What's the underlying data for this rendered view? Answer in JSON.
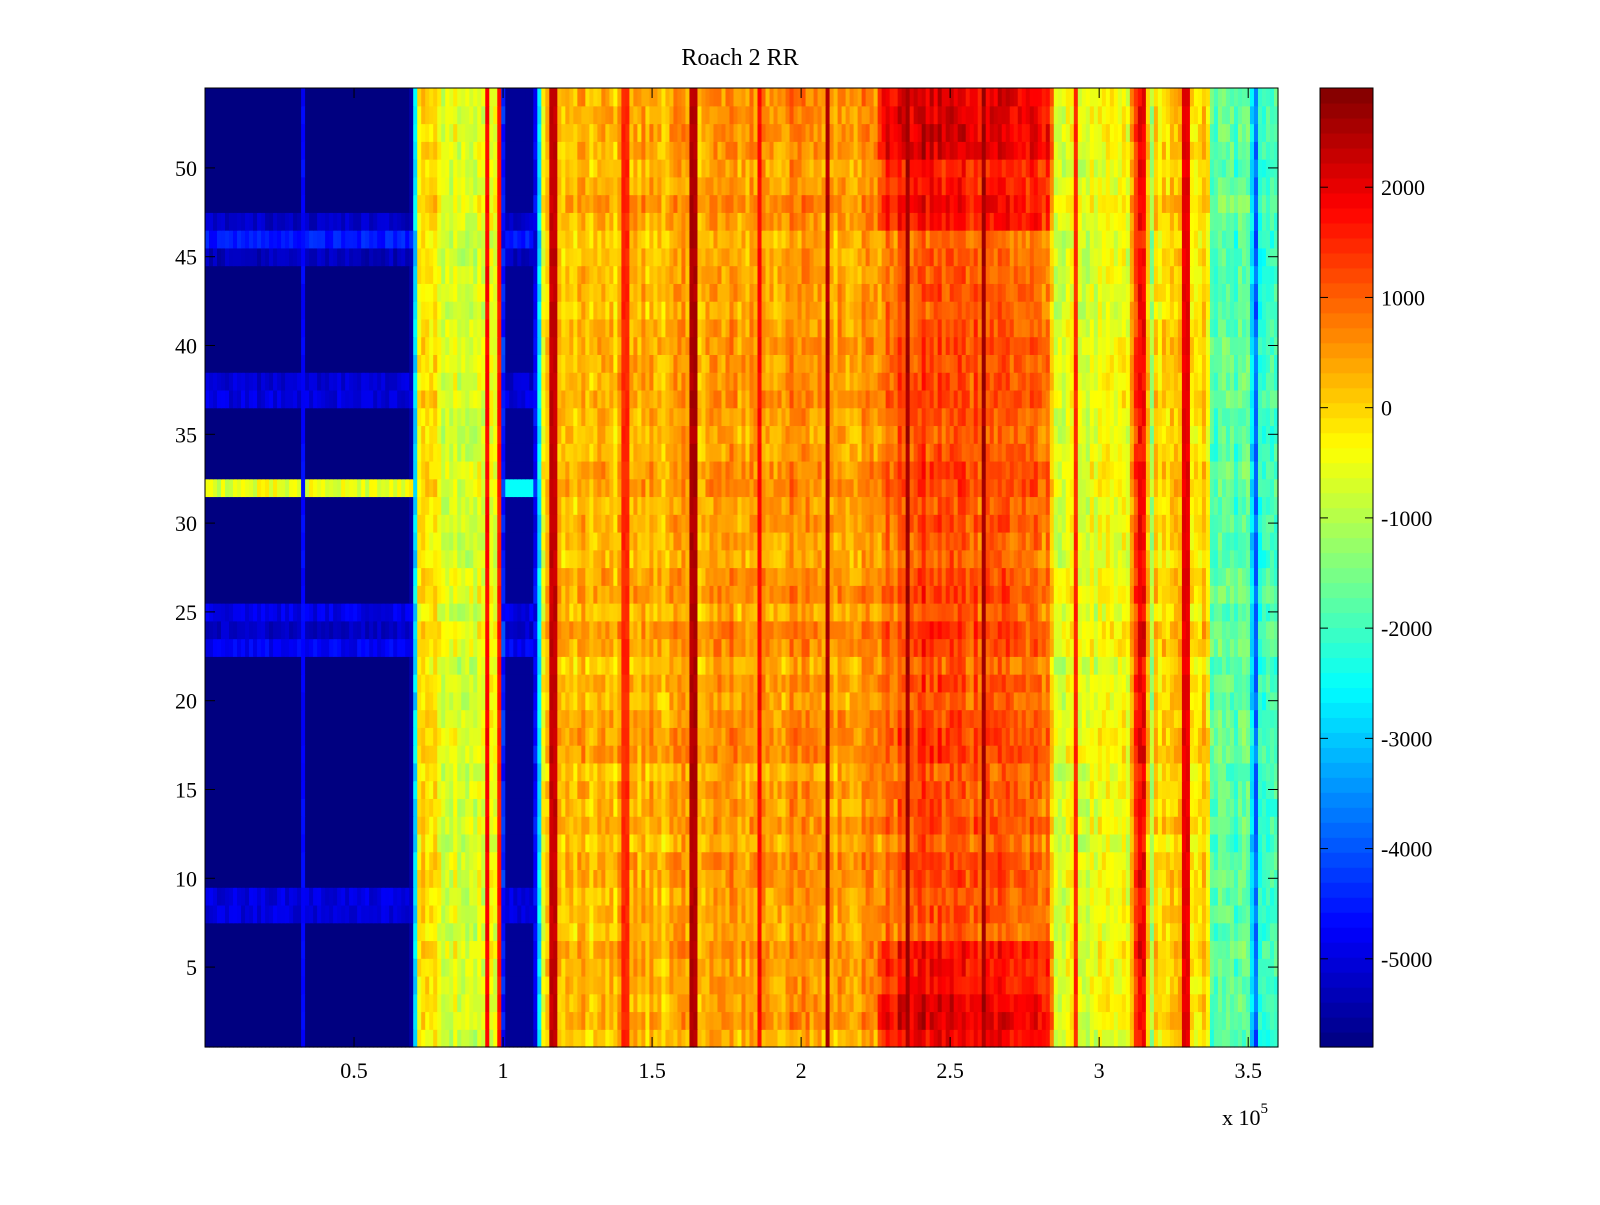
{
  "chart_data": {
    "type": "heatmap",
    "title": "Roach 2 RR",
    "xlabel": "",
    "ylabel": "",
    "x_multiplier_label": "x 10",
    "x_multiplier_exponent": "5",
    "xlim": [
      0,
      360000
    ],
    "ylim": [
      0.5,
      54.5
    ],
    "rows": 54,
    "x_ticks": [
      {
        "value": 50000,
        "label": "0.5"
      },
      {
        "value": 100000,
        "label": "1"
      },
      {
        "value": 150000,
        "label": "1.5"
      },
      {
        "value": 200000,
        "label": "2"
      },
      {
        "value": 250000,
        "label": "2.5"
      },
      {
        "value": 300000,
        "label": "3"
      },
      {
        "value": 350000,
        "label": "3.5"
      }
    ],
    "y_ticks": [
      {
        "value": 5,
        "label": "5"
      },
      {
        "value": 10,
        "label": "10"
      },
      {
        "value": 15,
        "label": "15"
      },
      {
        "value": 20,
        "label": "20"
      },
      {
        "value": 25,
        "label": "25"
      },
      {
        "value": 30,
        "label": "30"
      },
      {
        "value": 35,
        "label": "35"
      },
      {
        "value": 40,
        "label": "40"
      },
      {
        "value": 45,
        "label": "45"
      },
      {
        "value": 50,
        "label": "50"
      }
    ],
    "colormap": "jet",
    "clim": [
      -5800,
      2900
    ],
    "colorbar_ticks": [
      {
        "value": 2000,
        "label": "2000"
      },
      {
        "value": 1000,
        "label": "1000"
      },
      {
        "value": 0,
        "label": "0"
      },
      {
        "value": -1000,
        "label": "-1000"
      },
      {
        "value": -2000,
        "label": "-2000"
      },
      {
        "value": -3000,
        "label": "-3000"
      },
      {
        "value": -4000,
        "label": "-4000"
      },
      {
        "value": -5000,
        "label": "-5000"
      }
    ],
    "column_profile": [
      [
        0,
        -5800
      ],
      [
        69000,
        -5800
      ],
      [
        70500,
        -3000
      ],
      [
        72000,
        200
      ],
      [
        80000,
        -500
      ],
      [
        94000,
        -700
      ],
      [
        99000,
        -600
      ],
      [
        100500,
        -5600
      ],
      [
        110000,
        -5600
      ],
      [
        112000,
        -3000
      ],
      [
        114000,
        100
      ],
      [
        150000,
        300
      ],
      [
        180000,
        500
      ],
      [
        225000,
        600
      ],
      [
        235000,
        1200
      ],
      [
        270000,
        1100
      ],
      [
        283000,
        700
      ],
      [
        286000,
        -700
      ],
      [
        310000,
        -500
      ],
      [
        313000,
        1800
      ],
      [
        316000,
        1800
      ],
      [
        317000,
        -2200
      ],
      [
        319000,
        0
      ],
      [
        336000,
        0
      ],
      [
        338000,
        -1800
      ],
      [
        351000,
        -1800
      ],
      [
        352000,
        -4800
      ],
      [
        353500,
        -1900
      ],
      [
        360000,
        -1900
      ]
    ],
    "line_features": [
      [
        33000,
        -4700
      ],
      [
        95000,
        1800
      ],
      [
        99000,
        1600
      ],
      [
        117000,
        2300
      ],
      [
        141000,
        1500
      ],
      [
        164000,
        2500
      ],
      [
        186000,
        1800
      ],
      [
        209000,
        2500
      ],
      [
        236000,
        2600
      ],
      [
        261000,
        2600
      ],
      [
        292000,
        1500
      ],
      [
        329000,
        2000
      ]
    ],
    "row_overrides_blue_region": [
      {
        "row": 46,
        "value": -4500
      },
      {
        "row": 45,
        "value": -5300
      },
      {
        "row": 47,
        "value": -5200
      },
      {
        "row": 37,
        "value": -5000
      },
      {
        "row": 38,
        "value": -5100
      },
      {
        "row": 23,
        "value": -4800
      },
      {
        "row": 24,
        "value": -5200
      },
      {
        "row": 25,
        "value": -4900
      },
      {
        "row": 8,
        "value": -5000
      },
      {
        "row": 9,
        "value": -5000
      },
      {
        "row": 32,
        "value": -600
      }
    ],
    "hot_rows": [
      1,
      2,
      3,
      4,
      5,
      6,
      47,
      48,
      49,
      50,
      51,
      52,
      53,
      54
    ],
    "hot_range": [
      225000,
      285000
    ],
    "hot_boost": 900
  }
}
